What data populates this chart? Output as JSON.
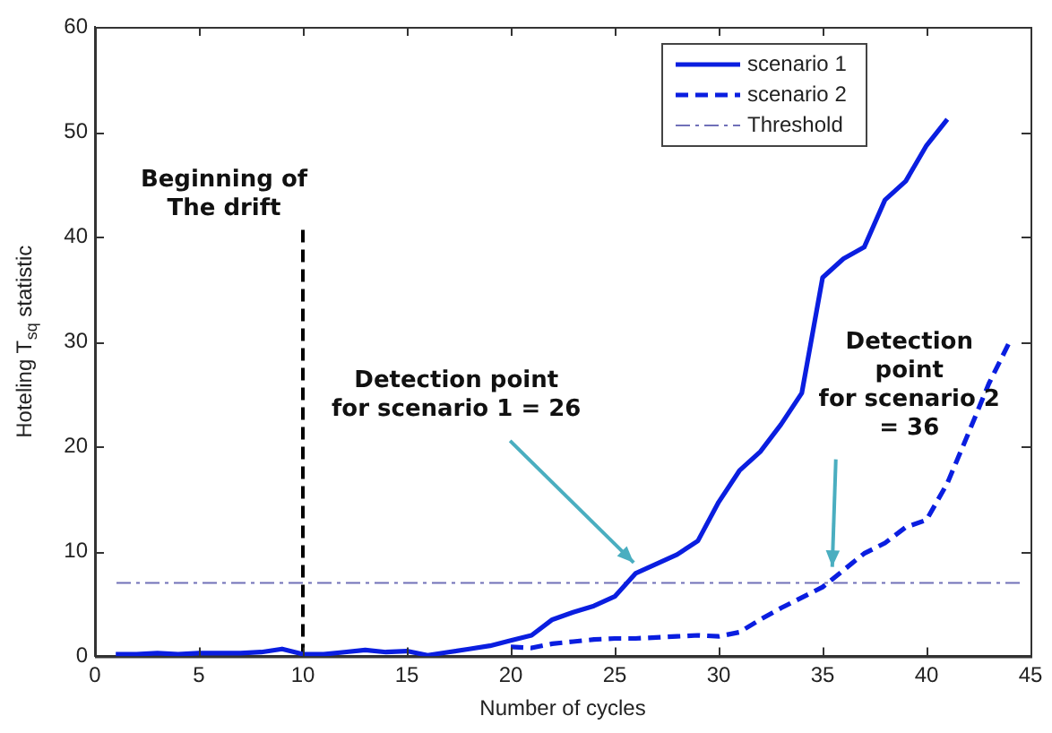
{
  "chart_data": {
    "type": "line",
    "xlabel": "Number of cycles",
    "ylabel": "Hoteling T$_{sq}$ statistic",
    "xlim": [
      0,
      45
    ],
    "xticks": [
      0,
      5,
      10,
      15,
      20,
      25,
      30,
      35,
      40,
      45
    ],
    "ylim": [
      0,
      60
    ],
    "yticks": [
      0,
      10,
      20,
      30,
      40,
      50,
      60
    ],
    "grid": false,
    "legend": "top right",
    "marker": "none",
    "series": [
      {
        "name": "scenario 1",
        "color": "#0a1ee0",
        "line_style": "solid",
        "x": [
          1,
          2,
          3,
          4,
          5,
          6,
          7,
          8,
          9,
          10,
          11,
          12,
          13,
          14,
          15,
          16,
          17,
          18,
          19,
          20,
          21,
          22,
          23,
          24,
          25,
          26,
          27,
          28,
          29,
          30,
          31,
          32,
          33,
          34,
          35,
          36,
          37,
          38,
          39,
          40,
          41
        ],
        "values": [
          0.2,
          0.2,
          0.3,
          0.2,
          0.3,
          0.3,
          0.3,
          0.4,
          0.7,
          0.2,
          0.2,
          0.4,
          0.6,
          0.4,
          0.5,
          0.1,
          0.4,
          0.7,
          1.0,
          1.5,
          2.0,
          3.5,
          4.2,
          4.8,
          5.7,
          7.9,
          8.8,
          9.7,
          11.0,
          14.7,
          17.7,
          19.5,
          22.1,
          25.1,
          36.1,
          37.9,
          39.0,
          43.5,
          45.3,
          48.7,
          51.2
        ]
      },
      {
        "name": "scenario 2",
        "color": "#0a1ee0",
        "line_style": "dashed",
        "x": [
          20,
          21,
          22,
          23,
          24,
          25,
          26,
          27,
          28,
          29,
          30,
          31,
          32,
          33,
          34,
          35,
          36,
          37,
          38,
          39,
          40,
          41,
          42,
          43,
          44
        ],
        "values": [
          0.9,
          0.8,
          1.2,
          1.4,
          1.6,
          1.7,
          1.7,
          1.8,
          1.9,
          2.0,
          1.9,
          2.3,
          3.5,
          4.6,
          5.6,
          6.6,
          8.2,
          9.8,
          10.8,
          12.3,
          13.0,
          16.5,
          21.2,
          26.0,
          30.0
        ]
      },
      {
        "color": "#000000",
        "line_style": "dashed",
        "x": [
          10,
          10
        ],
        "values": [
          0,
          41
        ]
      }
    ],
    "ref_lines": [
      {
        "axis": "y",
        "value": 7,
        "label": "Threshold",
        "color": "#7070b8",
        "line_style": "dashed"
      }
    ],
    "annotations": [
      {
        "text": "Beginning of\nThe drift",
        "x": 10,
        "y": 41
      },
      {
        "text": "Detection point\nfor scenario 1 = 26",
        "x": 26,
        "y": 7.9
      },
      "Detection\npoint\nfor scenario 2\n= 36"
    ]
  }
}
